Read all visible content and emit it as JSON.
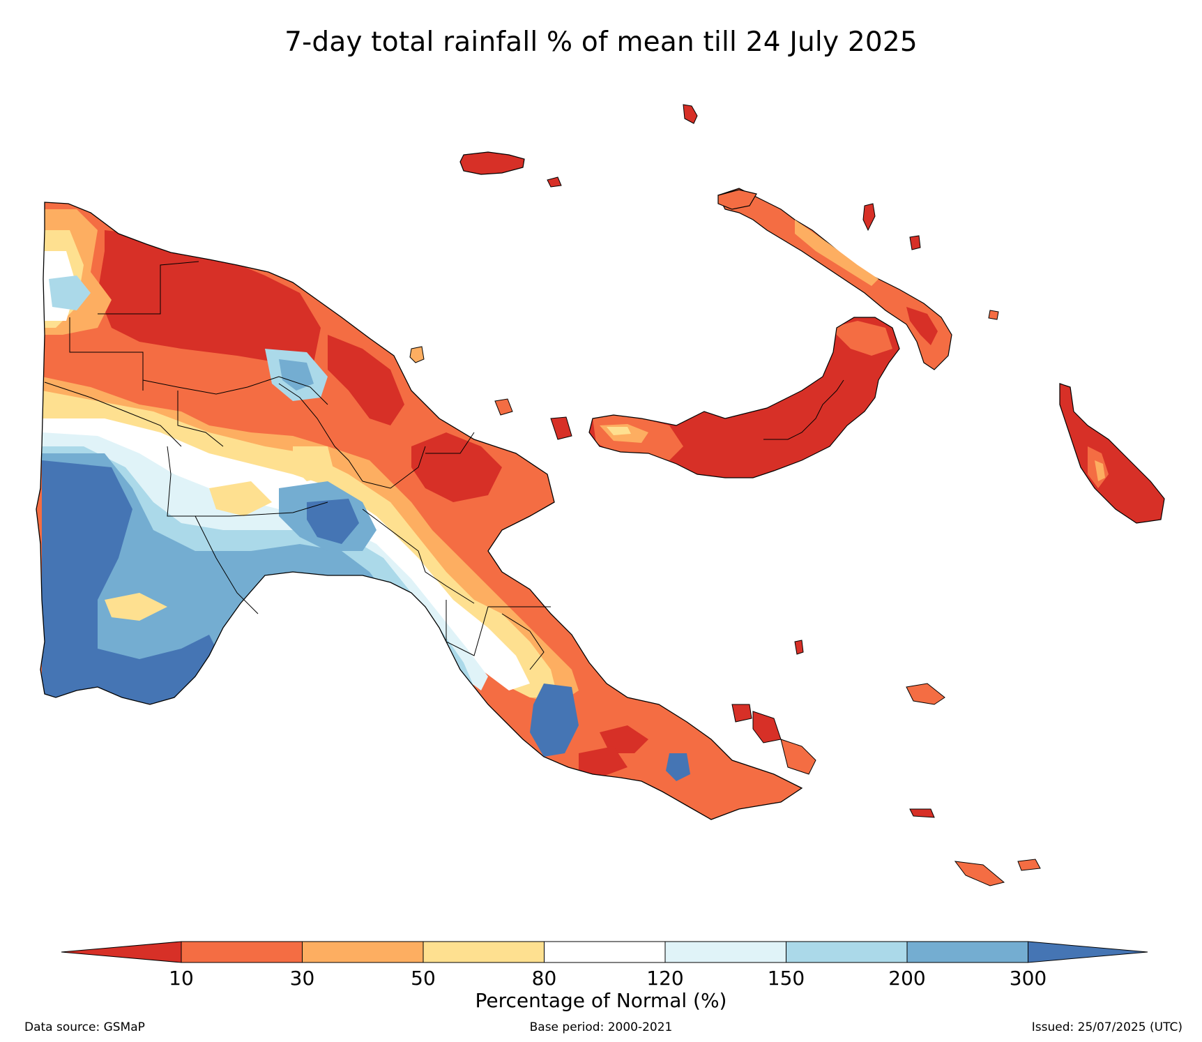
{
  "title": "7-day total rainfall % of mean till 24 July 2025",
  "colorbar": {
    "label": "Percentage of Normal (%)",
    "ticks": [
      "10",
      "30",
      "50",
      "80",
      "120",
      "150",
      "200",
      "300"
    ],
    "colors": [
      "#d73027",
      "#f46d43",
      "#fdae61",
      "#fee090",
      "#ffffff",
      "#e0f3f8",
      "#abd9e9",
      "#74add1",
      "#4575b4"
    ]
  },
  "footer": {
    "source": "Data source: GSMaP",
    "base_period": "Base period: 2000-2021",
    "issued": "Issued: 25/07/2025 (UTC)"
  }
}
